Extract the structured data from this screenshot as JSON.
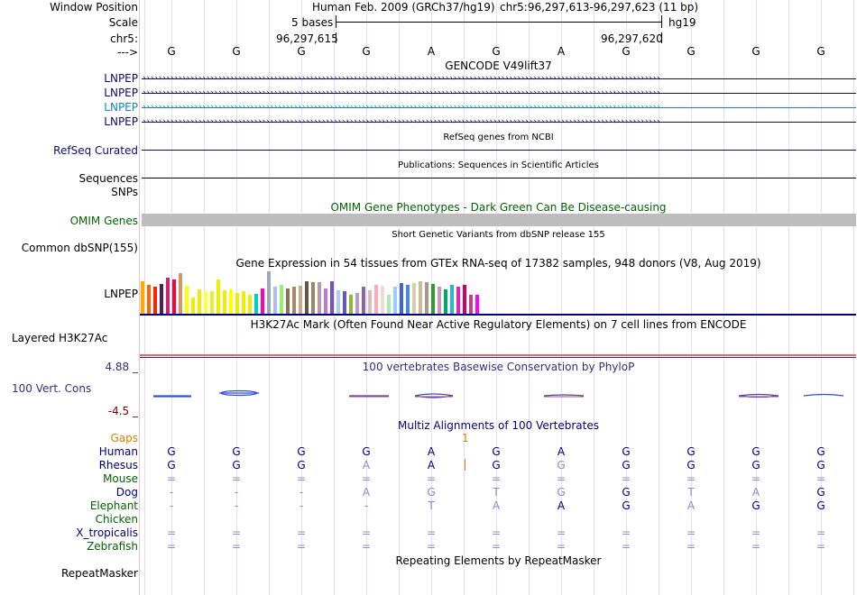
{
  "header": {
    "labels": {
      "window_position": "Window Position",
      "scale": "Scale",
      "chrom": "chr5:",
      "strand": "--->"
    },
    "assembly_title": "Human Feb. 2009 (GRCh37/hg19)",
    "position": "chr5:96,297,613-96,297,623 (11 bp)",
    "scale_bases": "5 bases",
    "scale_assembly": "hg19",
    "coord_left": "96,297,615",
    "coord_right": "96,297,620",
    "bases": [
      "G",
      "G",
      "G",
      "G",
      "A",
      "G",
      "A",
      "G",
      "G",
      "G",
      "G"
    ]
  },
  "tracks": {
    "gencode": {
      "title": "GENCODE V49lift37",
      "genes": [
        "LNPEP",
        "LNPEP",
        "LNPEP",
        "LNPEP"
      ],
      "colors": [
        "#0c0c78",
        "#0c0c78",
        "#0c88c8",
        "#0c0c78"
      ]
    },
    "refseq": {
      "title": "RefSeq genes from NCBI",
      "label": "RefSeq Curated",
      "color": "#0c0c78"
    },
    "publications": {
      "title": "Publications: Sequences in Scientific Articles",
      "label_sequences": "Sequences",
      "label_snps": "SNPs"
    },
    "omim": {
      "title": "OMIM Gene Phenotypes - Dark Green Can Be Disease-causing",
      "label": "OMIM Genes",
      "color": "#006400"
    },
    "dbsnp": {
      "title": "Short Genetic Variants from dbSNP release 155",
      "label": "Common dbSNP(155)"
    },
    "gtex": {
      "title": "Gene Expression in 54 tissues from GTEx RNA-seq of 17382 samples, 948 donors (V8, Aug 2019)",
      "label": "LNPEP",
      "values": [
        0.8,
        0.72,
        0.68,
        0.74,
        0.9,
        0.85,
        1.0,
        0.7,
        0.4,
        0.6,
        0.55,
        0.55,
        0.85,
        0.58,
        0.6,
        0.52,
        0.55,
        0.48,
        0.5,
        0.62,
        1.05,
        0.68,
        0.72,
        0.62,
        0.68,
        0.7,
        0.8,
        0.78,
        0.78,
        0.62,
        0.8,
        0.58,
        0.56,
        0.48,
        0.52,
        0.66,
        0.58,
        0.72,
        0.7,
        0.48,
        0.66,
        0.75,
        0.72,
        0.76,
        0.8,
        0.78,
        0.74,
        0.68,
        0.6,
        0.72,
        0.66,
        0.72,
        0.48,
        0.46
      ],
      "colors": [
        "#ffaa00",
        "#ff6600",
        "#ff2200",
        "#551c55",
        "#cc2277",
        "#ff0033",
        "#cc9966",
        "#ffff00",
        "#eeee00",
        "#eeee00",
        "#ffff44",
        "#eeee22",
        "#eeee00",
        "#eeee00",
        "#ffff00",
        "#eeee00",
        "#eeee00",
        "#eeee00",
        "#00cccc",
        "#ff00bb",
        "#99aabb",
        "#aabbff",
        "#99ee77",
        "#8b7355",
        "#aa8866",
        "#ccaa88",
        "#665544",
        "#998866",
        "#bb99aa",
        "#bb77dd",
        "#7755aa",
        "#aaccff",
        "#6655bb",
        "#88bb33",
        "#bb99cc",
        "#8866aa",
        "#ddbbbb",
        "#ffaabb",
        "#eeddcc",
        "#aaeeaa",
        "#99ccff",
        "#4466cc",
        "#4488ee",
        "#ddccaa",
        "#ccbb99",
        "#aa9988",
        "#339933",
        "#cc99bb",
        "#00aa66",
        "#22bbcc",
        "#ee22aa",
        "#cc0066",
        "#bb4488",
        "#ff00ff"
      ]
    },
    "h3k27ac": {
      "title": "H3K27Ac Mark (Often Found Near Active Regulatory Elements) on 7 cell lines from ENCODE",
      "label": "Layered H3K27Ac"
    },
    "phylop": {
      "title": "100 vertebrates Basewise Conservation by PhyloP",
      "label": "100 Vert. Cons",
      "max": "4.88 _",
      "min": "-4.5 _"
    },
    "multiz": {
      "title": "Multiz Alignments of 100 Vertebrates",
      "gaps_label": "Gaps",
      "gap_marker": "1",
      "species": [
        {
          "name": "Human",
          "color": "#000080",
          "bases": [
            "G",
            "G",
            "G",
            "G",
            "A",
            "G",
            "A",
            "G",
            "G",
            "G",
            "G"
          ],
          "dim": [
            0,
            0,
            0,
            0,
            0,
            0,
            0,
            0,
            0,
            0,
            0
          ]
        },
        {
          "name": "Rhesus",
          "color": "#000080",
          "bases": [
            "G",
            "G",
            "G",
            "A",
            "A",
            "G",
            "G",
            "G",
            "G",
            "G",
            "G"
          ],
          "dim": [
            0,
            0,
            0,
            1,
            0,
            0,
            1,
            0,
            0,
            0,
            0
          ]
        },
        {
          "name": "Mouse",
          "color": "#006400",
          "bases": [
            "=",
            "=",
            "=",
            "=",
            "=",
            "=",
            "=",
            "=",
            "=",
            "=",
            "="
          ],
          "dim": [
            1,
            1,
            1,
            1,
            1,
            1,
            1,
            1,
            1,
            1,
            1
          ]
        },
        {
          "name": "Dog",
          "color": "#000080",
          "bases": [
            "-",
            "-",
            "-",
            "A",
            "G",
            "T",
            "G",
            "G",
            "T",
            "A",
            "G"
          ],
          "dim": [
            1,
            1,
            1,
            1,
            1,
            1,
            1,
            0,
            1,
            1,
            0
          ]
        },
        {
          "name": "Elephant",
          "color": "#006400",
          "bases": [
            "-",
            "-",
            "-",
            "-",
            "T",
            "A",
            "A",
            "G",
            "A",
            "G",
            "G"
          ],
          "dim": [
            1,
            1,
            1,
            1,
            1,
            1,
            0,
            0,
            1,
            0,
            0
          ]
        },
        {
          "name": "Chicken",
          "color": "#006400",
          "bases": [
            "",
            "",
            "",
            "",
            "",
            "",
            "",
            "",
            "",
            "",
            ""
          ],
          "dim": [
            0,
            0,
            0,
            0,
            0,
            0,
            0,
            0,
            0,
            0,
            0
          ]
        },
        {
          "name": "X_tropicalis",
          "color": "#000080",
          "bases": [
            "=",
            "=",
            "=",
            "=",
            "=",
            "=",
            "=",
            "=",
            "=",
            "=",
            "="
          ],
          "dim": [
            1,
            1,
            1,
            1,
            1,
            1,
            1,
            1,
            1,
            1,
            1
          ]
        },
        {
          "name": "Zebrafish",
          "color": "#006400",
          "bases": [
            "=",
            "=",
            "=",
            "=",
            "=",
            "=",
            "=",
            "=",
            "=",
            "=",
            "="
          ],
          "dim": [
            1,
            1,
            1,
            1,
            1,
            1,
            1,
            1,
            1,
            1,
            1
          ]
        }
      ]
    },
    "repeatmasker": {
      "title": "Repeating Elements by RepeatMasker",
      "label": "RepeatMasker"
    }
  },
  "colors": {
    "dim_base": "#8c8cc8",
    "gap_color": "#e08000",
    "phylop_color": "#303080",
    "phylop_max_color": "#303080",
    "phylop_min_color": "#800000",
    "h3k27ac_line": "#f06464"
  }
}
